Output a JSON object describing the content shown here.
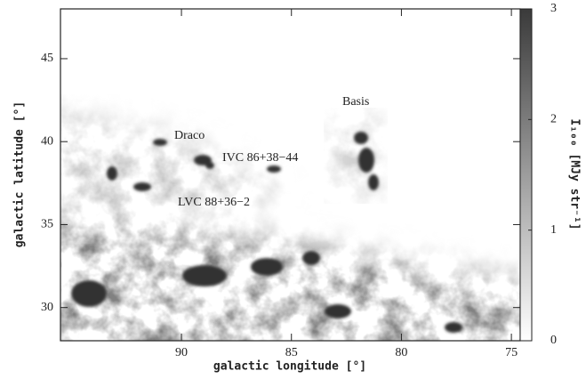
{
  "chart_data": {
    "type": "map",
    "xlabel": "galactic longitude [°]",
    "ylabel": "galactic latitude [°]",
    "xlim": [
      95.5,
      74.6
    ],
    "xticks": [
      90,
      85,
      80,
      75
    ],
    "ylim": [
      28,
      48
    ],
    "yticks": [
      30,
      35,
      40,
      45
    ],
    "colorbar": {
      "label": "I₁₀₀ [MJy str⁻¹]",
      "lim": [
        0,
        3
      ],
      "ticks": [
        0,
        1,
        2,
        3
      ],
      "colors": [
        "#ffffff",
        "#3a3a3a"
      ]
    },
    "annotations": [
      "Draco",
      "IVC 86+38−44",
      "Basis",
      "LVC 88+36−2"
    ]
  }
}
